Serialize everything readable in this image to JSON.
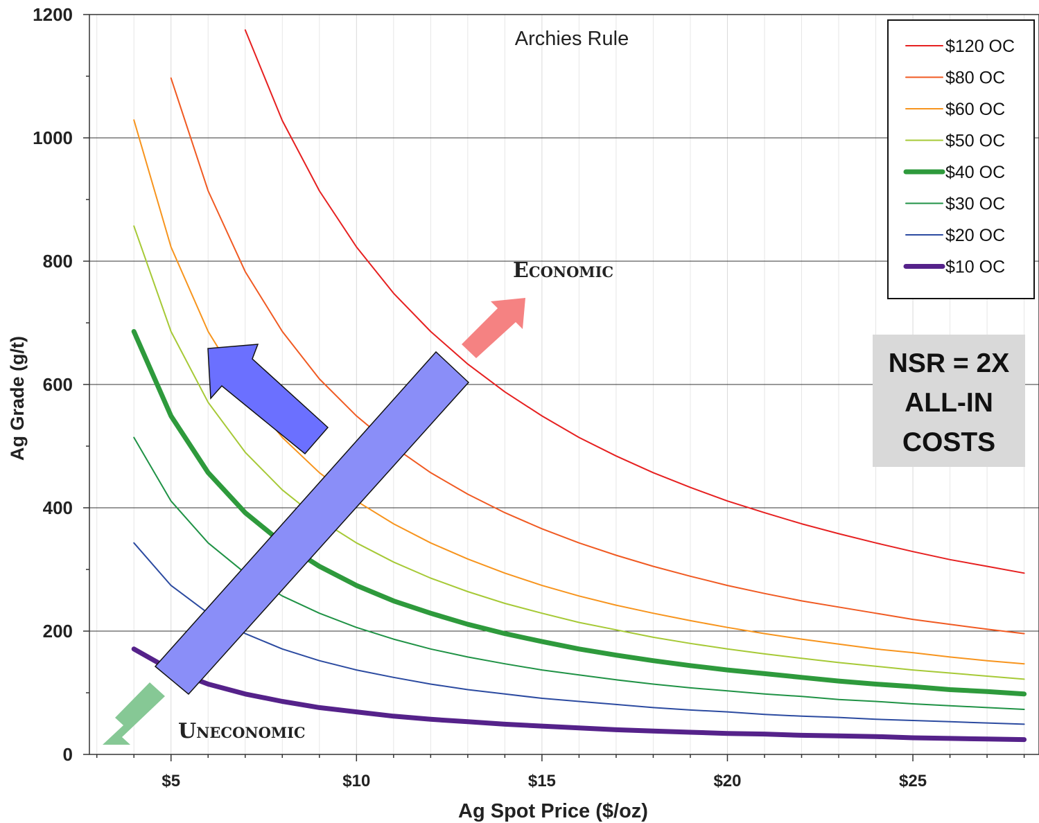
{
  "chart_data": {
    "type": "line",
    "title": "Archies Rule",
    "xlabel": "Ag Spot Price ($/oz)",
    "ylabel": "Ag Grade (g/t)",
    "xlim": [
      2.8,
      28.4
    ],
    "ylim": [
      0,
      1200
    ],
    "x_ticks": [
      {
        "value": 5,
        "label": "$5"
      },
      {
        "value": 10,
        "label": "$10"
      },
      {
        "value": 15,
        "label": "$15"
      },
      {
        "value": 20,
        "label": "$20"
      },
      {
        "value": 25,
        "label": "$25"
      }
    ],
    "y_ticks": [
      {
        "value": 0,
        "label": "0"
      },
      {
        "value": 200,
        "label": "200"
      },
      {
        "value": 400,
        "label": "400"
      },
      {
        "value": 600,
        "label": "600"
      },
      {
        "value": 800,
        "label": "800"
      },
      {
        "value": 1000,
        "label": "1000"
      },
      {
        "value": 1200,
        "label": "1200"
      }
    ],
    "grid": true,
    "legend_position": "top-right",
    "series": [
      {
        "name": "$120 OC",
        "color": "#e62020",
        "width": 2,
        "x": [
          7,
          8,
          9,
          10,
          11,
          12,
          13,
          14,
          15,
          16,
          17,
          18,
          19,
          20,
          21,
          22,
          23,
          24,
          25,
          26,
          27,
          28
        ],
        "values": [
          1175,
          1028,
          914,
          823,
          748,
          686,
          633,
          588,
          549,
          514,
          484,
          457,
          433,
          411,
          392,
          374,
          358,
          343,
          329,
          316,
          305,
          294
        ]
      },
      {
        "name": "$80 OC",
        "color": "#f05a22",
        "width": 2,
        "x": [
          5,
          6,
          7,
          8,
          9,
          10,
          11,
          12,
          13,
          14,
          15,
          16,
          17,
          18,
          19,
          20,
          21,
          22,
          23,
          24,
          25,
          26,
          27,
          28
        ],
        "values": [
          1097,
          914,
          783,
          686,
          609,
          549,
          499,
          457,
          422,
          392,
          366,
          343,
          323,
          305,
          289,
          274,
          261,
          249,
          239,
          229,
          219,
          211,
          203,
          196
        ]
      },
      {
        "name": "$60 OC",
        "color": "#f7941d",
        "width": 2,
        "x": [
          4,
          5,
          6,
          7,
          8,
          9,
          10,
          11,
          12,
          13,
          14,
          15,
          16,
          17,
          18,
          19,
          20,
          21,
          22,
          23,
          24,
          25,
          26,
          27,
          28
        ],
        "values": [
          1029,
          823,
          686,
          588,
          514,
          457,
          411,
          374,
          343,
          317,
          294,
          274,
          257,
          242,
          229,
          217,
          206,
          196,
          187,
          179,
          171,
          165,
          158,
          152,
          147
        ]
      },
      {
        "name": "$50 OC",
        "color": "#a6c936",
        "width": 2,
        "x": [
          4,
          5,
          6,
          7,
          8,
          9,
          10,
          11,
          12,
          13,
          14,
          15,
          16,
          17,
          18,
          19,
          20,
          21,
          22,
          23,
          24,
          25,
          26,
          27,
          28
        ],
        "values": [
          857,
          686,
          571,
          490,
          429,
          381,
          343,
          312,
          286,
          264,
          245,
          229,
          214,
          202,
          190,
          180,
          171,
          163,
          156,
          149,
          143,
          137,
          132,
          127,
          122
        ]
      },
      {
        "name": "$40 OC",
        "color": "#2e9a3c",
        "width": 7,
        "x": [
          4,
          5,
          6,
          7,
          8,
          9,
          10,
          11,
          12,
          13,
          14,
          15,
          16,
          17,
          18,
          19,
          20,
          21,
          22,
          23,
          24,
          25,
          26,
          27,
          28
        ],
        "values": [
          686,
          549,
          457,
          392,
          343,
          305,
          274,
          249,
          229,
          211,
          196,
          183,
          171,
          161,
          152,
          144,
          137,
          131,
          125,
          119,
          114,
          110,
          105,
          102,
          98
        ]
      },
      {
        "name": "$30 OC",
        "color": "#1f9245",
        "width": 2,
        "x": [
          4,
          5,
          6,
          7,
          8,
          9,
          10,
          11,
          12,
          13,
          14,
          15,
          16,
          17,
          18,
          19,
          20,
          21,
          22,
          23,
          24,
          25,
          26,
          27,
          28
        ],
        "values": [
          514,
          411,
          343,
          294,
          257,
          229,
          206,
          187,
          171,
          158,
          147,
          137,
          129,
          121,
          114,
          108,
          103,
          98,
          94,
          89,
          86,
          82,
          79,
          76,
          73
        ]
      },
      {
        "name": "$20 OC",
        "color": "#2b4aa0",
        "width": 2,
        "x": [
          4,
          5,
          6,
          7,
          8,
          9,
          10,
          11,
          12,
          13,
          14,
          15,
          16,
          17,
          18,
          19,
          20,
          21,
          22,
          23,
          24,
          25,
          26,
          27,
          28
        ],
        "values": [
          343,
          274,
          229,
          196,
          171,
          152,
          137,
          125,
          114,
          105,
          98,
          91,
          86,
          81,
          76,
          72,
          69,
          65,
          62,
          60,
          57,
          55,
          53,
          51,
          49
        ]
      },
      {
        "name": "$10 OC",
        "color": "#55228a",
        "width": 7,
        "x": [
          4,
          5,
          6,
          7,
          8,
          9,
          10,
          11,
          12,
          13,
          14,
          15,
          16,
          17,
          18,
          19,
          20,
          21,
          22,
          23,
          24,
          25,
          26,
          27,
          28
        ],
        "values": [
          171,
          137,
          114,
          98,
          86,
          76,
          69,
          62,
          57,
          53,
          49,
          46,
          43,
          40,
          38,
          36,
          34,
          33,
          31,
          30,
          29,
          27,
          26,
          25,
          24
        ]
      }
    ],
    "annotations": {
      "economic": "Economic",
      "uneconomic": "Uneconomic",
      "nsr_lines": [
        "NSR = 2X",
        "ALL-IN",
        "COSTS"
      ]
    }
  },
  "colors": {
    "economic_arrow": "#f58282",
    "uneconomic_arrow": "#86c895",
    "blue_arrow": "#6b70ff",
    "blue_band": "#8a8ef8",
    "nsr_box": "#d9d9d9"
  }
}
